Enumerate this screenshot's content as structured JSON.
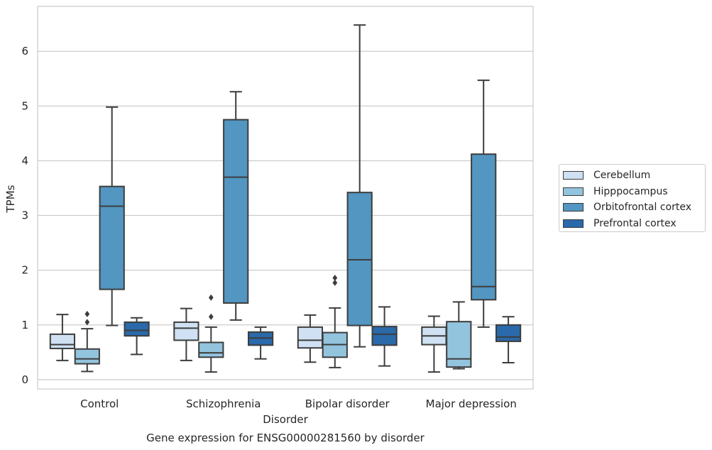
{
  "chart_data": {
    "type": "boxplot",
    "title": "Gene expression for ENSG00000281560 by disorder",
    "xlabel": "Disorder",
    "ylabel": "TPMs",
    "ylim": [
      -0.17,
      6.82
    ],
    "yticks": [
      0,
      1,
      2,
      3,
      4,
      5,
      6
    ],
    "grid": "horizontal",
    "legend_position": "right",
    "categories": [
      "Control",
      "Schizophrenia",
      "Bipolar disorder",
      "Major depression"
    ],
    "series": [
      {
        "name": "Cerebellum",
        "color": "#cfe1f2",
        "boxes": [
          {
            "whisker_low": 0.35,
            "q1": 0.57,
            "median": 0.64,
            "q3": 0.83,
            "whisker_high": 1.19,
            "outliers": []
          },
          {
            "whisker_low": 0.35,
            "q1": 0.72,
            "median": 0.94,
            "q3": 1.05,
            "whisker_high": 1.3,
            "outliers": []
          },
          {
            "whisker_low": 0.32,
            "q1": 0.58,
            "median": 0.72,
            "q3": 0.96,
            "whisker_high": 1.18,
            "outliers": []
          },
          {
            "whisker_low": 0.14,
            "q1": 0.64,
            "median": 0.8,
            "q3": 0.96,
            "whisker_high": 1.16,
            "outliers": []
          }
        ]
      },
      {
        "name": "Hipppocampus",
        "color": "#93c4de",
        "boxes": [
          {
            "whisker_low": 0.15,
            "q1": 0.29,
            "median": 0.38,
            "q3": 0.56,
            "whisker_high": 0.93,
            "outliers": [
              1.05,
              1.2
            ]
          },
          {
            "whisker_low": 0.14,
            "q1": 0.41,
            "median": 0.49,
            "q3": 0.68,
            "whisker_high": 0.96,
            "outliers": [
              1.15,
              1.5
            ]
          },
          {
            "whisker_low": 0.22,
            "q1": 0.41,
            "median": 0.64,
            "q3": 0.86,
            "whisker_high": 1.31,
            "outliers": [
              1.77,
              1.86
            ]
          },
          {
            "whisker_low": 0.2,
            "q1": 0.23,
            "median": 0.38,
            "q3": 1.06,
            "whisker_high": 1.42,
            "outliers": []
          }
        ]
      },
      {
        "name": "Orbitofrontal cortex",
        "color": "#5296c1",
        "boxes": [
          {
            "whisker_low": 0.99,
            "q1": 1.65,
            "median": 3.17,
            "q3": 3.53,
            "whisker_high": 4.98,
            "outliers": []
          },
          {
            "whisker_low": 1.09,
            "q1": 1.4,
            "median": 3.7,
            "q3": 4.75,
            "whisker_high": 5.26,
            "outliers": []
          },
          {
            "whisker_low": 0.6,
            "q1": 0.99,
            "median": 2.19,
            "q3": 3.42,
            "whisker_high": 6.48,
            "outliers": []
          },
          {
            "whisker_low": 0.96,
            "q1": 1.46,
            "median": 1.7,
            "q3": 4.12,
            "whisker_high": 5.47,
            "outliers": []
          }
        ]
      },
      {
        "name": "Prefrontal cortex",
        "color": "#2a69aa",
        "boxes": [
          {
            "whisker_low": 0.46,
            "q1": 0.8,
            "median": 0.9,
            "q3": 1.05,
            "whisker_high": 1.13,
            "outliers": []
          },
          {
            "whisker_low": 0.38,
            "q1": 0.63,
            "median": 0.76,
            "q3": 0.87,
            "whisker_high": 0.96,
            "outliers": []
          },
          {
            "whisker_low": 0.25,
            "q1": 0.63,
            "median": 0.83,
            "q3": 0.97,
            "whisker_high": 1.33,
            "outliers": []
          },
          {
            "whisker_low": 0.31,
            "q1": 0.7,
            "median": 0.78,
            "q3": 1.0,
            "whisker_high": 1.15,
            "outliers": []
          }
        ]
      }
    ]
  }
}
